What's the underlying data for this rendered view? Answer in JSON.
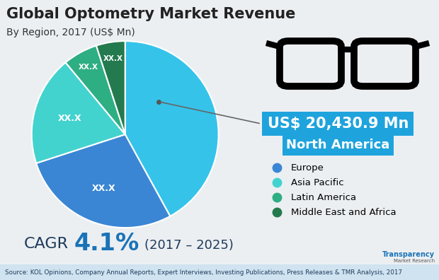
{
  "chart_data": {
    "type": "pie",
    "title": "Global Optometry Market Revenue",
    "subtitle": "By Region, 2017 (US$ Mn)",
    "categories": [
      "North America",
      "Europe",
      "Asia Pacific",
      "Latin America",
      "Middle East and Africa"
    ],
    "values": [
      20430.9,
      13620,
      9240,
      2920,
      2430
    ],
    "colors": [
      "#35c3ea",
      "#3b86d4",
      "#43d3cf",
      "#2eae83",
      "#237a4e"
    ],
    "slice_labels": [
      null,
      "XX.X",
      "XX.X",
      "XX.X",
      "XX.X"
    ],
    "callout": {
      "category": "North America",
      "label": "US$ 20,430.9 Mn"
    },
    "legend": "center left",
    "cagr": {
      "label": "CAGR",
      "text": "4.1%",
      "period": "(2017 – 2025)"
    },
    "source": "Source: KOL Opinions, Company Annual Reports, Expert Interviews, Investing Publications, Press Releases & TMR Analysis, 2017",
    "logo": [
      "Transparency",
      "Market Research"
    ]
  }
}
